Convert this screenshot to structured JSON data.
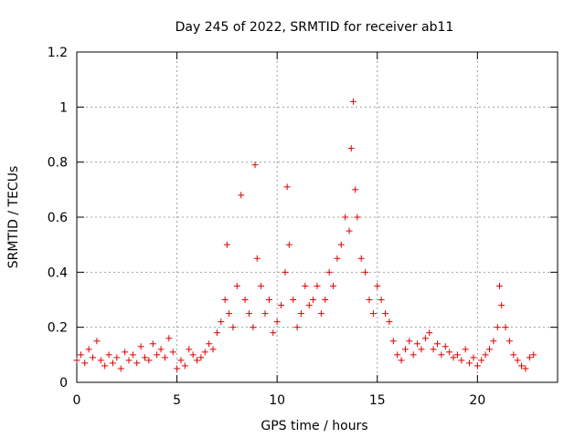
{
  "chart_data": {
    "type": "scatter",
    "title": "Day 245 of 2022, SRMTID for receiver ab11",
    "xlabel": "GPS time / hours",
    "ylabel": "SRMTID / TECUs",
    "xlim": [
      0,
      24
    ],
    "ylim": [
      0,
      1.2
    ],
    "x_ticks": [
      "0",
      "5",
      "10",
      "15",
      "20"
    ],
    "y_ticks": [
      "0",
      "0.2",
      "0.4",
      "0.6",
      "0.8",
      "1",
      "1.2"
    ],
    "grid": true,
    "marker": "plus",
    "color": "#e00000",
    "series": [
      {
        "name": "ab11",
        "x": [
          0.0,
          0.2,
          0.4,
          0.6,
          0.8,
          1.0,
          1.2,
          1.4,
          1.6,
          1.8,
          2.0,
          2.2,
          2.4,
          2.6,
          2.8,
          3.0,
          3.2,
          3.4,
          3.6,
          3.8,
          4.0,
          4.2,
          4.4,
          4.6,
          4.8,
          5.0,
          5.2,
          5.4,
          5.6,
          5.8,
          6.0,
          6.2,
          6.4,
          6.6,
          6.8,
          7.0,
          7.2,
          7.4,
          7.5,
          7.6,
          7.8,
          8.0,
          8.2,
          8.4,
          8.6,
          8.8,
          8.9,
          9.0,
          9.2,
          9.4,
          9.6,
          9.8,
          10.0,
          10.2,
          10.4,
          10.5,
          10.6,
          10.8,
          11.0,
          11.2,
          11.4,
          11.6,
          11.8,
          12.0,
          12.2,
          12.4,
          12.6,
          12.8,
          13.0,
          13.2,
          13.4,
          13.6,
          13.7,
          13.8,
          13.9,
          14.0,
          14.2,
          14.4,
          14.6,
          14.8,
          15.0,
          15.2,
          15.4,
          15.6,
          15.8,
          16.0,
          16.2,
          16.4,
          16.6,
          16.8,
          17.0,
          17.2,
          17.4,
          17.6,
          17.8,
          18.0,
          18.2,
          18.4,
          18.6,
          18.8,
          19.0,
          19.2,
          19.4,
          19.6,
          19.8,
          20.0,
          20.2,
          20.4,
          20.6,
          20.8,
          21.0,
          21.1,
          21.2,
          21.4,
          21.6,
          21.8,
          22.0,
          22.2,
          22.4,
          22.6,
          22.8
        ],
        "y": [
          0.08,
          0.1,
          0.07,
          0.12,
          0.09,
          0.15,
          0.08,
          0.06,
          0.1,
          0.07,
          0.09,
          0.05,
          0.11,
          0.08,
          0.1,
          0.07,
          0.13,
          0.09,
          0.08,
          0.14,
          0.1,
          0.12,
          0.09,
          0.16,
          0.11,
          0.05,
          0.08,
          0.06,
          0.12,
          0.1,
          0.08,
          0.09,
          0.11,
          0.14,
          0.12,
          0.18,
          0.22,
          0.3,
          0.5,
          0.25,
          0.2,
          0.35,
          0.68,
          0.3,
          0.25,
          0.2,
          0.79,
          0.45,
          0.35,
          0.25,
          0.3,
          0.18,
          0.22,
          0.28,
          0.4,
          0.71,
          0.5,
          0.3,
          0.2,
          0.25,
          0.35,
          0.28,
          0.3,
          0.35,
          0.25,
          0.3,
          0.4,
          0.35,
          0.45,
          0.5,
          0.6,
          0.55,
          0.85,
          1.02,
          0.7,
          0.6,
          0.45,
          0.4,
          0.3,
          0.25,
          0.35,
          0.3,
          0.25,
          0.22,
          0.15,
          0.1,
          0.08,
          0.12,
          0.15,
          0.1,
          0.14,
          0.12,
          0.16,
          0.18,
          0.12,
          0.14,
          0.1,
          0.13,
          0.11,
          0.09,
          0.1,
          0.08,
          0.12,
          0.07,
          0.09,
          0.06,
          0.08,
          0.1,
          0.12,
          0.15,
          0.2,
          0.35,
          0.28,
          0.2,
          0.15,
          0.1,
          0.08,
          0.06,
          0.05,
          0.09,
          0.1
        ]
      }
    ]
  }
}
